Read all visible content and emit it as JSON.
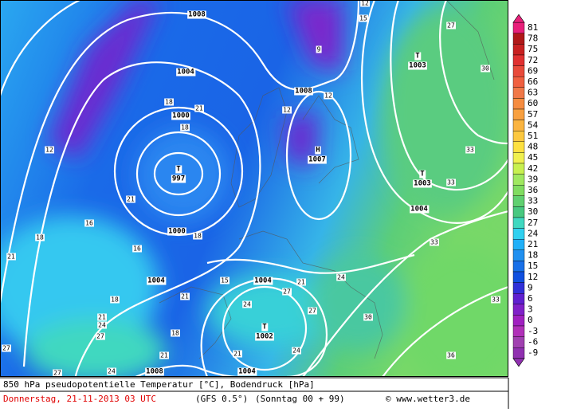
{
  "map": {
    "pressure_labels": [
      "1008",
      "1004",
      "1000",
      "T",
      "997",
      "1000",
      "1004",
      "1008",
      "H",
      "1007",
      "T",
      "1003",
      "T",
      "1003",
      "1004",
      "1004",
      "T",
      "1002",
      "1004",
      "1008"
    ],
    "temperature_labels": [
      12,
      15,
      9,
      12,
      12,
      27,
      30,
      33,
      33,
      33,
      33,
      36,
      30,
      27,
      27,
      24,
      24,
      24,
      21,
      21,
      18,
      18,
      21,
      18,
      16,
      16,
      18,
      21,
      15,
      21,
      18,
      21,
      24,
      27,
      18,
      21,
      21,
      24,
      27,
      12,
      27
    ],
    "legend": {
      "values": [
        81,
        78,
        75,
        72,
        69,
        66,
        63,
        60,
        57,
        54,
        51,
        48,
        45,
        42,
        39,
        36,
        33,
        30,
        27,
        24,
        21,
        18,
        15,
        12,
        9,
        6,
        3,
        0,
        -3,
        -6,
        -9
      ],
      "colors": [
        "#e8207a",
        "#b01818",
        "#c82020",
        "#e03030",
        "#e84a3a",
        "#f06040",
        "#f07848",
        "#f58c40",
        "#f8a040",
        "#fab440",
        "#fcc840",
        "#fde040",
        "#f0f050",
        "#c8f050",
        "#a0e860",
        "#80dc60",
        "#60d070",
        "#48c880",
        "#40d8c0",
        "#30d0f0",
        "#20b0f8",
        "#2090f0",
        "#1870e8",
        "#1050e0",
        "#3030d8",
        "#6020d0",
        "#8020c8",
        "#a020c0",
        "#b030b8",
        "#a040b0",
        "#9030b0"
      ]
    }
  },
  "footer": {
    "title": "850 hPa pseudopotentielle Temperatur [°C], Bodendruck [hPa]",
    "date": "Donnerstag, 21-11-2013  03 UTC",
    "model": "(GFS 0.5°)",
    "run": "(Sonntag 00 + 99)",
    "credit": "© www.wetter3.de"
  }
}
